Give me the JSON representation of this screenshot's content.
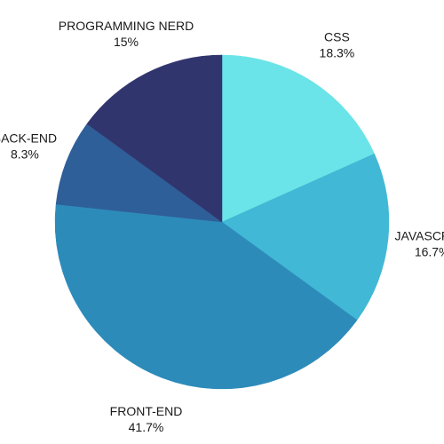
{
  "chart_data": {
    "type": "pie",
    "title": "",
    "start_angle_deg": 0,
    "direction": "clockwise",
    "slices": [
      {
        "label": "CSS",
        "percent_label": "18.3%",
        "value": 18.3,
        "color": "#6ae4e8"
      },
      {
        "label": "JAVASCRIPT",
        "percent_label": "16.7%",
        "value": 16.7,
        "color": "#41b8d5"
      },
      {
        "label": "FRONT-END",
        "percent_label": "41.7%",
        "value": 41.7,
        "color": "#2d8bba"
      },
      {
        "label": "BACK-END",
        "percent_label": "8.3%",
        "value": 8.3,
        "color": "#2f5f98"
      },
      {
        "label": "PROGRAMMING NERD",
        "percent_label": "15%",
        "value": 15,
        "color": "#31356e"
      }
    ]
  }
}
